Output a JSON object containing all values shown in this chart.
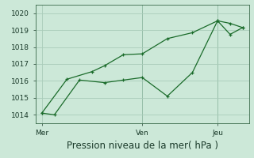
{
  "xlabel": "Pression niveau de la mer( hPa )",
  "bg_color": "#cce8d8",
  "grid_color": "#aaccba",
  "line_color": "#1a6b2a",
  "vline_color": "#3a7a5a",
  "ylim": [
    1013.5,
    1020.5
  ],
  "yticks": [
    1014,
    1015,
    1016,
    1017,
    1018,
    1019,
    1020
  ],
  "xtick_labels": [
    "Mer",
    "Ven",
    "Jeu"
  ],
  "xtick_positions": [
    0,
    8,
    14
  ],
  "vline_positions": [
    8,
    14
  ],
  "line1_x": [
    0,
    1,
    3,
    5,
    6.5,
    8,
    10,
    12,
    14,
    15,
    16
  ],
  "line1_y": [
    1014.1,
    1014.0,
    1016.05,
    1015.9,
    1016.05,
    1016.2,
    1015.1,
    1016.5,
    1019.55,
    1019.4,
    1019.15
  ],
  "line2_x": [
    0,
    2,
    4,
    5,
    6.5,
    8,
    10,
    12,
    14,
    15,
    16
  ],
  "line2_y": [
    1014.1,
    1016.1,
    1016.55,
    1016.9,
    1017.55,
    1017.6,
    1018.5,
    1018.85,
    1019.55,
    1018.75,
    1019.15
  ],
  "tick_fontsize": 6.5,
  "xlabel_fontsize": 8.5,
  "line_width": 0.9,
  "marker_size": 3.0
}
